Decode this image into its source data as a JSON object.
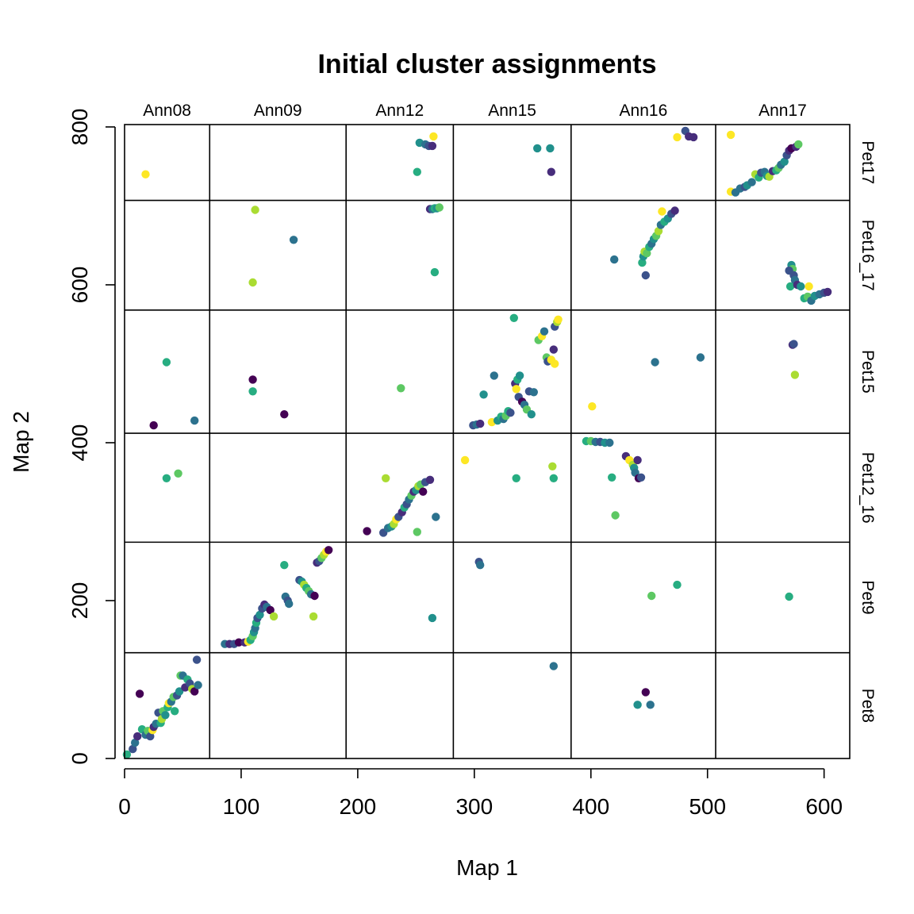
{
  "chart_data": {
    "type": "scatter",
    "title": "Initial cluster assignments",
    "xlabel": "Map 1",
    "ylabel": "Map 2",
    "xlim": [
      0,
      622
    ],
    "ylim": [
      0,
      803
    ],
    "x_ticks": [
      0,
      100,
      200,
      300,
      400,
      500,
      600
    ],
    "y_ticks": [
      0,
      200,
      400,
      600,
      800
    ],
    "grid": false,
    "legend": "none",
    "columns": [
      {
        "label": "Ann08",
        "range": [
          0,
          73
        ]
      },
      {
        "label": "Ann09",
        "range": [
          73,
          190
        ]
      },
      {
        "label": "Ann12",
        "range": [
          190,
          282
        ]
      },
      {
        "label": "Ann15",
        "range": [
          282,
          383
        ]
      },
      {
        "label": "Ann16",
        "range": [
          383,
          507
        ]
      },
      {
        "label": "Ann17",
        "range": [
          507,
          622
        ]
      }
    ],
    "rows": [
      {
        "label": "Pet8",
        "range": [
          0,
          134
        ]
      },
      {
        "label": "Pet9",
        "range": [
          134,
          274
        ]
      },
      {
        "label": "Pet12_16",
        "range": [
          274,
          412
        ]
      },
      {
        "label": "Pet15",
        "range": [
          412,
          568
        ]
      },
      {
        "label": "Pet16_17",
        "range": [
          568,
          707
        ]
      },
      {
        "label": "Pet17",
        "range": [
          707,
          803
        ]
      }
    ],
    "cluster_colors": [
      "#440154",
      "#472D7B",
      "#3B528B",
      "#2C728E",
      "#21908C",
      "#27AD81",
      "#5DC863",
      "#AADC32",
      "#FDE725"
    ],
    "points": [
      {
        "x": 2,
        "y": 5,
        "c": 5
      },
      {
        "x": 7,
        "y": 12,
        "c": 2
      },
      {
        "x": 9,
        "y": 20,
        "c": 3
      },
      {
        "x": 11,
        "y": 28,
        "c": 1
      },
      {
        "x": 13,
        "y": 82,
        "c": 0
      },
      {
        "x": 15,
        "y": 37,
        "c": 5
      },
      {
        "x": 18,
        "y": 30,
        "c": 3
      },
      {
        "x": 20,
        "y": 35,
        "c": 6
      },
      {
        "x": 22,
        "y": 28,
        "c": 2
      },
      {
        "x": 24,
        "y": 36,
        "c": 8
      },
      {
        "x": 25,
        "y": 40,
        "c": 1
      },
      {
        "x": 27,
        "y": 44,
        "c": 3
      },
      {
        "x": 29,
        "y": 58,
        "c": 2
      },
      {
        "x": 31,
        "y": 45,
        "c": 5
      },
      {
        "x": 32,
        "y": 50,
        "c": 7
      },
      {
        "x": 33,
        "y": 60,
        "c": 6
      },
      {
        "x": 35,
        "y": 55,
        "c": 4
      },
      {
        "x": 37,
        "y": 65,
        "c": 5
      },
      {
        "x": 38,
        "y": 70,
        "c": 8
      },
      {
        "x": 40,
        "y": 72,
        "c": 3
      },
      {
        "x": 42,
        "y": 78,
        "c": 6
      },
      {
        "x": 43,
        "y": 60,
        "c": 5
      },
      {
        "x": 45,
        "y": 80,
        "c": 2
      },
      {
        "x": 47,
        "y": 85,
        "c": 4
      },
      {
        "x": 48,
        "y": 105,
        "c": 6
      },
      {
        "x": 50,
        "y": 105,
        "c": 3
      },
      {
        "x": 52,
        "y": 90,
        "c": 1
      },
      {
        "x": 54,
        "y": 100,
        "c": 5
      },
      {
        "x": 56,
        "y": 95,
        "c": 2
      },
      {
        "x": 58,
        "y": 88,
        "c": 7
      },
      {
        "x": 60,
        "y": 85,
        "c": 0
      },
      {
        "x": 62,
        "y": 125,
        "c": 2
      },
      {
        "x": 63,
        "y": 93,
        "c": 3
      },
      {
        "x": 18,
        "y": 740,
        "c": 8
      },
      {
        "x": 25,
        "y": 422,
        "c": 0
      },
      {
        "x": 36,
        "y": 502,
        "c": 5
      },
      {
        "x": 60,
        "y": 428,
        "c": 3
      },
      {
        "x": 36,
        "y": 355,
        "c": 5
      },
      {
        "x": 46,
        "y": 361,
        "c": 6
      },
      {
        "x": 86,
        "y": 145,
        "c": 3
      },
      {
        "x": 90,
        "y": 145,
        "c": 1
      },
      {
        "x": 94,
        "y": 145,
        "c": 2
      },
      {
        "x": 98,
        "y": 147,
        "c": 0
      },
      {
        "x": 103,
        "y": 147,
        "c": 1
      },
      {
        "x": 106,
        "y": 148,
        "c": 8
      },
      {
        "x": 108,
        "y": 150,
        "c": 5
      },
      {
        "x": 110,
        "y": 155,
        "c": 6
      },
      {
        "x": 111,
        "y": 160,
        "c": 4
      },
      {
        "x": 112,
        "y": 165,
        "c": 3
      },
      {
        "x": 113,
        "y": 172,
        "c": 5
      },
      {
        "x": 114,
        "y": 178,
        "c": 2
      },
      {
        "x": 116,
        "y": 182,
        "c": 4
      },
      {
        "x": 118,
        "y": 190,
        "c": 2
      },
      {
        "x": 120,
        "y": 195,
        "c": 1
      },
      {
        "x": 122,
        "y": 192,
        "c": 3
      },
      {
        "x": 125,
        "y": 188,
        "c": 0
      },
      {
        "x": 128,
        "y": 180,
        "c": 7
      },
      {
        "x": 137,
        "y": 245,
        "c": 5
      },
      {
        "x": 138,
        "y": 205,
        "c": 3
      },
      {
        "x": 140,
        "y": 200,
        "c": 2
      },
      {
        "x": 141,
        "y": 196,
        "c": 3
      },
      {
        "x": 150,
        "y": 226,
        "c": 2
      },
      {
        "x": 152,
        "y": 224,
        "c": 4
      },
      {
        "x": 154,
        "y": 220,
        "c": 7
      },
      {
        "x": 156,
        "y": 216,
        "c": 5
      },
      {
        "x": 158,
        "y": 212,
        "c": 6
      },
      {
        "x": 160,
        "y": 208,
        "c": 3
      },
      {
        "x": 162,
        "y": 180,
        "c": 7
      },
      {
        "x": 163,
        "y": 206,
        "c": 0
      },
      {
        "x": 165,
        "y": 248,
        "c": 1
      },
      {
        "x": 167,
        "y": 250,
        "c": 2
      },
      {
        "x": 169,
        "y": 254,
        "c": 6
      },
      {
        "x": 171,
        "y": 258,
        "c": 7
      },
      {
        "x": 173,
        "y": 262,
        "c": 8
      },
      {
        "x": 175,
        "y": 264,
        "c": 0
      },
      {
        "x": 110,
        "y": 603,
        "c": 7
      },
      {
        "x": 112,
        "y": 695,
        "c": 7
      },
      {
        "x": 145,
        "y": 657,
        "c": 3
      },
      {
        "x": 110,
        "y": 465,
        "c": 5
      },
      {
        "x": 110,
        "y": 480,
        "c": 0
      },
      {
        "x": 137,
        "y": 436,
        "c": 0
      },
      {
        "x": 208,
        "y": 288,
        "c": 0
      },
      {
        "x": 222,
        "y": 286,
        "c": 2
      },
      {
        "x": 226,
        "y": 292,
        "c": 3
      },
      {
        "x": 229,
        "y": 294,
        "c": 4
      },
      {
        "x": 231,
        "y": 297,
        "c": 7
      },
      {
        "x": 233,
        "y": 303,
        "c": 8
      },
      {
        "x": 235,
        "y": 306,
        "c": 2
      },
      {
        "x": 238,
        "y": 312,
        "c": 1
      },
      {
        "x": 240,
        "y": 318,
        "c": 5
      },
      {
        "x": 242,
        "y": 322,
        "c": 2
      },
      {
        "x": 244,
        "y": 328,
        "c": 3
      },
      {
        "x": 246,
        "y": 333,
        "c": 6
      },
      {
        "x": 248,
        "y": 338,
        "c": 1
      },
      {
        "x": 250,
        "y": 340,
        "c": 4
      },
      {
        "x": 251,
        "y": 287,
        "c": 6
      },
      {
        "x": 252,
        "y": 345,
        "c": 7
      },
      {
        "x": 254,
        "y": 347,
        "c": 6
      },
      {
        "x": 256,
        "y": 338,
        "c": 0
      },
      {
        "x": 258,
        "y": 350,
        "c": 2
      },
      {
        "x": 262,
        "y": 353,
        "c": 1
      },
      {
        "x": 267,
        "y": 306,
        "c": 3
      },
      {
        "x": 224,
        "y": 355,
        "c": 7
      },
      {
        "x": 264,
        "y": 178,
        "c": 4
      },
      {
        "x": 237,
        "y": 469,
        "c": 6
      },
      {
        "x": 262,
        "y": 696,
        "c": 1
      },
      {
        "x": 264,
        "y": 696,
        "c": 3
      },
      {
        "x": 266,
        "y": 697,
        "c": 5
      },
      {
        "x": 268,
        "y": 697,
        "c": 4
      },
      {
        "x": 270,
        "y": 698,
        "c": 6
      },
      {
        "x": 266,
        "y": 616,
        "c": 5
      },
      {
        "x": 251,
        "y": 743,
        "c": 5
      },
      {
        "x": 253,
        "y": 780,
        "c": 4
      },
      {
        "x": 258,
        "y": 778,
        "c": 3
      },
      {
        "x": 261,
        "y": 776,
        "c": 2
      },
      {
        "x": 264,
        "y": 776,
        "c": 1
      },
      {
        "x": 265,
        "y": 788,
        "c": 8
      },
      {
        "x": 299,
        "y": 422,
        "c": 2
      },
      {
        "x": 302,
        "y": 423,
        "c": 3
      },
      {
        "x": 305,
        "y": 424,
        "c": 1
      },
      {
        "x": 308,
        "y": 461,
        "c": 4
      },
      {
        "x": 315,
        "y": 426,
        "c": 8
      },
      {
        "x": 317,
        "y": 485,
        "c": 3
      },
      {
        "x": 320,
        "y": 428,
        "c": 4
      },
      {
        "x": 323,
        "y": 433,
        "c": 5
      },
      {
        "x": 325,
        "y": 430,
        "c": 3
      },
      {
        "x": 327,
        "y": 434,
        "c": 6
      },
      {
        "x": 329,
        "y": 440,
        "c": 5
      },
      {
        "x": 331,
        "y": 438,
        "c": 2
      },
      {
        "x": 334,
        "y": 558,
        "c": 5
      },
      {
        "x": 335,
        "y": 475,
        "c": 1
      },
      {
        "x": 336,
        "y": 468,
        "c": 8
      },
      {
        "x": 337,
        "y": 480,
        "c": 5
      },
      {
        "x": 338,
        "y": 458,
        "c": 2
      },
      {
        "x": 339,
        "y": 485,
        "c": 4
      },
      {
        "x": 341,
        "y": 452,
        "c": 0
      },
      {
        "x": 343,
        "y": 448,
        "c": 3
      },
      {
        "x": 345,
        "y": 442,
        "c": 6
      },
      {
        "x": 347,
        "y": 465,
        "c": 2
      },
      {
        "x": 349,
        "y": 436,
        "c": 4
      },
      {
        "x": 351,
        "y": 464,
        "c": 3
      },
      {
        "x": 355,
        "y": 530,
        "c": 6
      },
      {
        "x": 358,
        "y": 535,
        "c": 8
      },
      {
        "x": 360,
        "y": 541,
        "c": 3
      },
      {
        "x": 362,
        "y": 508,
        "c": 6
      },
      {
        "x": 363,
        "y": 503,
        "c": 2
      },
      {
        "x": 366,
        "y": 505,
        "c": 8
      },
      {
        "x": 368,
        "y": 518,
        "c": 1
      },
      {
        "x": 369,
        "y": 547,
        "c": 2
      },
      {
        "x": 371,
        "y": 553,
        "c": 7
      },
      {
        "x": 372,
        "y": 556,
        "c": 8
      },
      {
        "x": 369,
        "y": 500,
        "c": 8
      },
      {
        "x": 292,
        "y": 378,
        "c": 8
      },
      {
        "x": 336,
        "y": 355,
        "c": 5
      },
      {
        "x": 367,
        "y": 370,
        "c": 7
      },
      {
        "x": 368,
        "y": 355,
        "c": 5
      },
      {
        "x": 304,
        "y": 249,
        "c": 2
      },
      {
        "x": 305,
        "y": 245,
        "c": 3
      },
      {
        "x": 368,
        "y": 117,
        "c": 3
      },
      {
        "x": 354,
        "y": 773,
        "c": 4
      },
      {
        "x": 366,
        "y": 743,
        "c": 1
      },
      {
        "x": 365,
        "y": 773,
        "c": 4
      },
      {
        "x": 396,
        "y": 402,
        "c": 5
      },
      {
        "x": 400,
        "y": 402,
        "c": 6
      },
      {
        "x": 404,
        "y": 401,
        "c": 3
      },
      {
        "x": 408,
        "y": 401,
        "c": 2
      },
      {
        "x": 412,
        "y": 400,
        "c": 4
      },
      {
        "x": 416,
        "y": 400,
        "c": 3
      },
      {
        "x": 418,
        "y": 356,
        "c": 5
      },
      {
        "x": 421,
        "y": 308,
        "c": 6
      },
      {
        "x": 430,
        "y": 383,
        "c": 1
      },
      {
        "x": 433,
        "y": 378,
        "c": 8
      },
      {
        "x": 436,
        "y": 372,
        "c": 7
      },
      {
        "x": 437,
        "y": 368,
        "c": 4
      },
      {
        "x": 438,
        "y": 362,
        "c": 3
      },
      {
        "x": 440,
        "y": 378,
        "c": 1
      },
      {
        "x": 441,
        "y": 355,
        "c": 0
      },
      {
        "x": 443,
        "y": 356,
        "c": 2
      },
      {
        "x": 452,
        "y": 206,
        "c": 6
      },
      {
        "x": 474,
        "y": 220,
        "c": 5
      },
      {
        "x": 401,
        "y": 446,
        "c": 8
      },
      {
        "x": 455,
        "y": 502,
        "c": 3
      },
      {
        "x": 494,
        "y": 508,
        "c": 3
      },
      {
        "x": 440,
        "y": 68,
        "c": 4
      },
      {
        "x": 447,
        "y": 84,
        "c": 0
      },
      {
        "x": 451,
        "y": 68,
        "c": 3
      },
      {
        "x": 420,
        "y": 632,
        "c": 3
      },
      {
        "x": 444,
        "y": 628,
        "c": 5
      },
      {
        "x": 445,
        "y": 636,
        "c": 4
      },
      {
        "x": 446,
        "y": 642,
        "c": 7
      },
      {
        "x": 447,
        "y": 612,
        "c": 2
      },
      {
        "x": 448,
        "y": 640,
        "c": 6
      },
      {
        "x": 450,
        "y": 648,
        "c": 5
      },
      {
        "x": 452,
        "y": 652,
        "c": 3
      },
      {
        "x": 454,
        "y": 658,
        "c": 4
      },
      {
        "x": 456,
        "y": 662,
        "c": 6
      },
      {
        "x": 458,
        "y": 668,
        "c": 7
      },
      {
        "x": 460,
        "y": 676,
        "c": 3
      },
      {
        "x": 461,
        "y": 693,
        "c": 8
      },
      {
        "x": 463,
        "y": 680,
        "c": 5
      },
      {
        "x": 466,
        "y": 684,
        "c": 4
      },
      {
        "x": 469,
        "y": 690,
        "c": 2
      },
      {
        "x": 472,
        "y": 694,
        "c": 1
      },
      {
        "x": 474,
        "y": 787,
        "c": 8
      },
      {
        "x": 481,
        "y": 795,
        "c": 2
      },
      {
        "x": 484,
        "y": 788,
        "c": 1
      },
      {
        "x": 488,
        "y": 787,
        "c": 1
      },
      {
        "x": 520,
        "y": 718,
        "c": 8
      },
      {
        "x": 524,
        "y": 717,
        "c": 3
      },
      {
        "x": 528,
        "y": 722,
        "c": 3
      },
      {
        "x": 532,
        "y": 724,
        "c": 2
      },
      {
        "x": 534,
        "y": 726,
        "c": 4
      },
      {
        "x": 538,
        "y": 730,
        "c": 3
      },
      {
        "x": 541,
        "y": 740,
        "c": 7
      },
      {
        "x": 544,
        "y": 736,
        "c": 5
      },
      {
        "x": 546,
        "y": 742,
        "c": 2
      },
      {
        "x": 549,
        "y": 743,
        "c": 3
      },
      {
        "x": 551,
        "y": 738,
        "c": 4
      },
      {
        "x": 553,
        "y": 737,
        "c": 7
      },
      {
        "x": 556,
        "y": 744,
        "c": 1
      },
      {
        "x": 559,
        "y": 745,
        "c": 5
      },
      {
        "x": 561,
        "y": 748,
        "c": 6
      },
      {
        "x": 563,
        "y": 752,
        "c": 3
      },
      {
        "x": 566,
        "y": 756,
        "c": 4
      },
      {
        "x": 568,
        "y": 764,
        "c": 2
      },
      {
        "x": 570,
        "y": 770,
        "c": 1
      },
      {
        "x": 572,
        "y": 773,
        "c": 0
      },
      {
        "x": 576,
        "y": 775,
        "c": 1
      },
      {
        "x": 578,
        "y": 778,
        "c": 6
      },
      {
        "x": 520,
        "y": 790,
        "c": 8
      },
      {
        "x": 571,
        "y": 598,
        "c": 5
      },
      {
        "x": 572,
        "y": 625,
        "c": 4
      },
      {
        "x": 573,
        "y": 620,
        "c": 6
      },
      {
        "x": 574,
        "y": 612,
        "c": 2
      },
      {
        "x": 575,
        "y": 606,
        "c": 3
      },
      {
        "x": 577,
        "y": 600,
        "c": 1
      },
      {
        "x": 580,
        "y": 598,
        "c": 4
      },
      {
        "x": 583,
        "y": 583,
        "c": 5
      },
      {
        "x": 586,
        "y": 585,
        "c": 6
      },
      {
        "x": 589,
        "y": 580,
        "c": 3
      },
      {
        "x": 592,
        "y": 586,
        "c": 4
      },
      {
        "x": 596,
        "y": 588,
        "c": 3
      },
      {
        "x": 600,
        "y": 590,
        "c": 2
      },
      {
        "x": 603,
        "y": 591,
        "c": 1
      },
      {
        "x": 587,
        "y": 598,
        "c": 8
      },
      {
        "x": 570,
        "y": 618,
        "c": 2
      },
      {
        "x": 573,
        "y": 524,
        "c": 1
      },
      {
        "x": 574,
        "y": 525,
        "c": 2
      },
      {
        "x": 575,
        "y": 486,
        "c": 7
      },
      {
        "x": 570,
        "y": 205,
        "c": 5
      }
    ]
  }
}
